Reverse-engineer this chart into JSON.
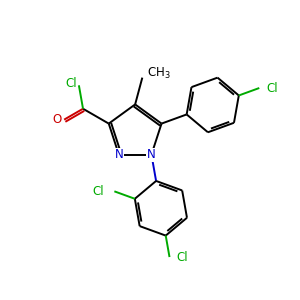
{
  "background_color": "#ffffff",
  "atom_colors": {
    "C": "#000000",
    "N": "#0000cc",
    "O": "#cc0000",
    "Cl": "#00aa00",
    "H": "#000000"
  },
  "figsize": [
    3.0,
    3.0
  ],
  "dpi": 100,
  "lw": 1.4,
  "fs": 8.5
}
